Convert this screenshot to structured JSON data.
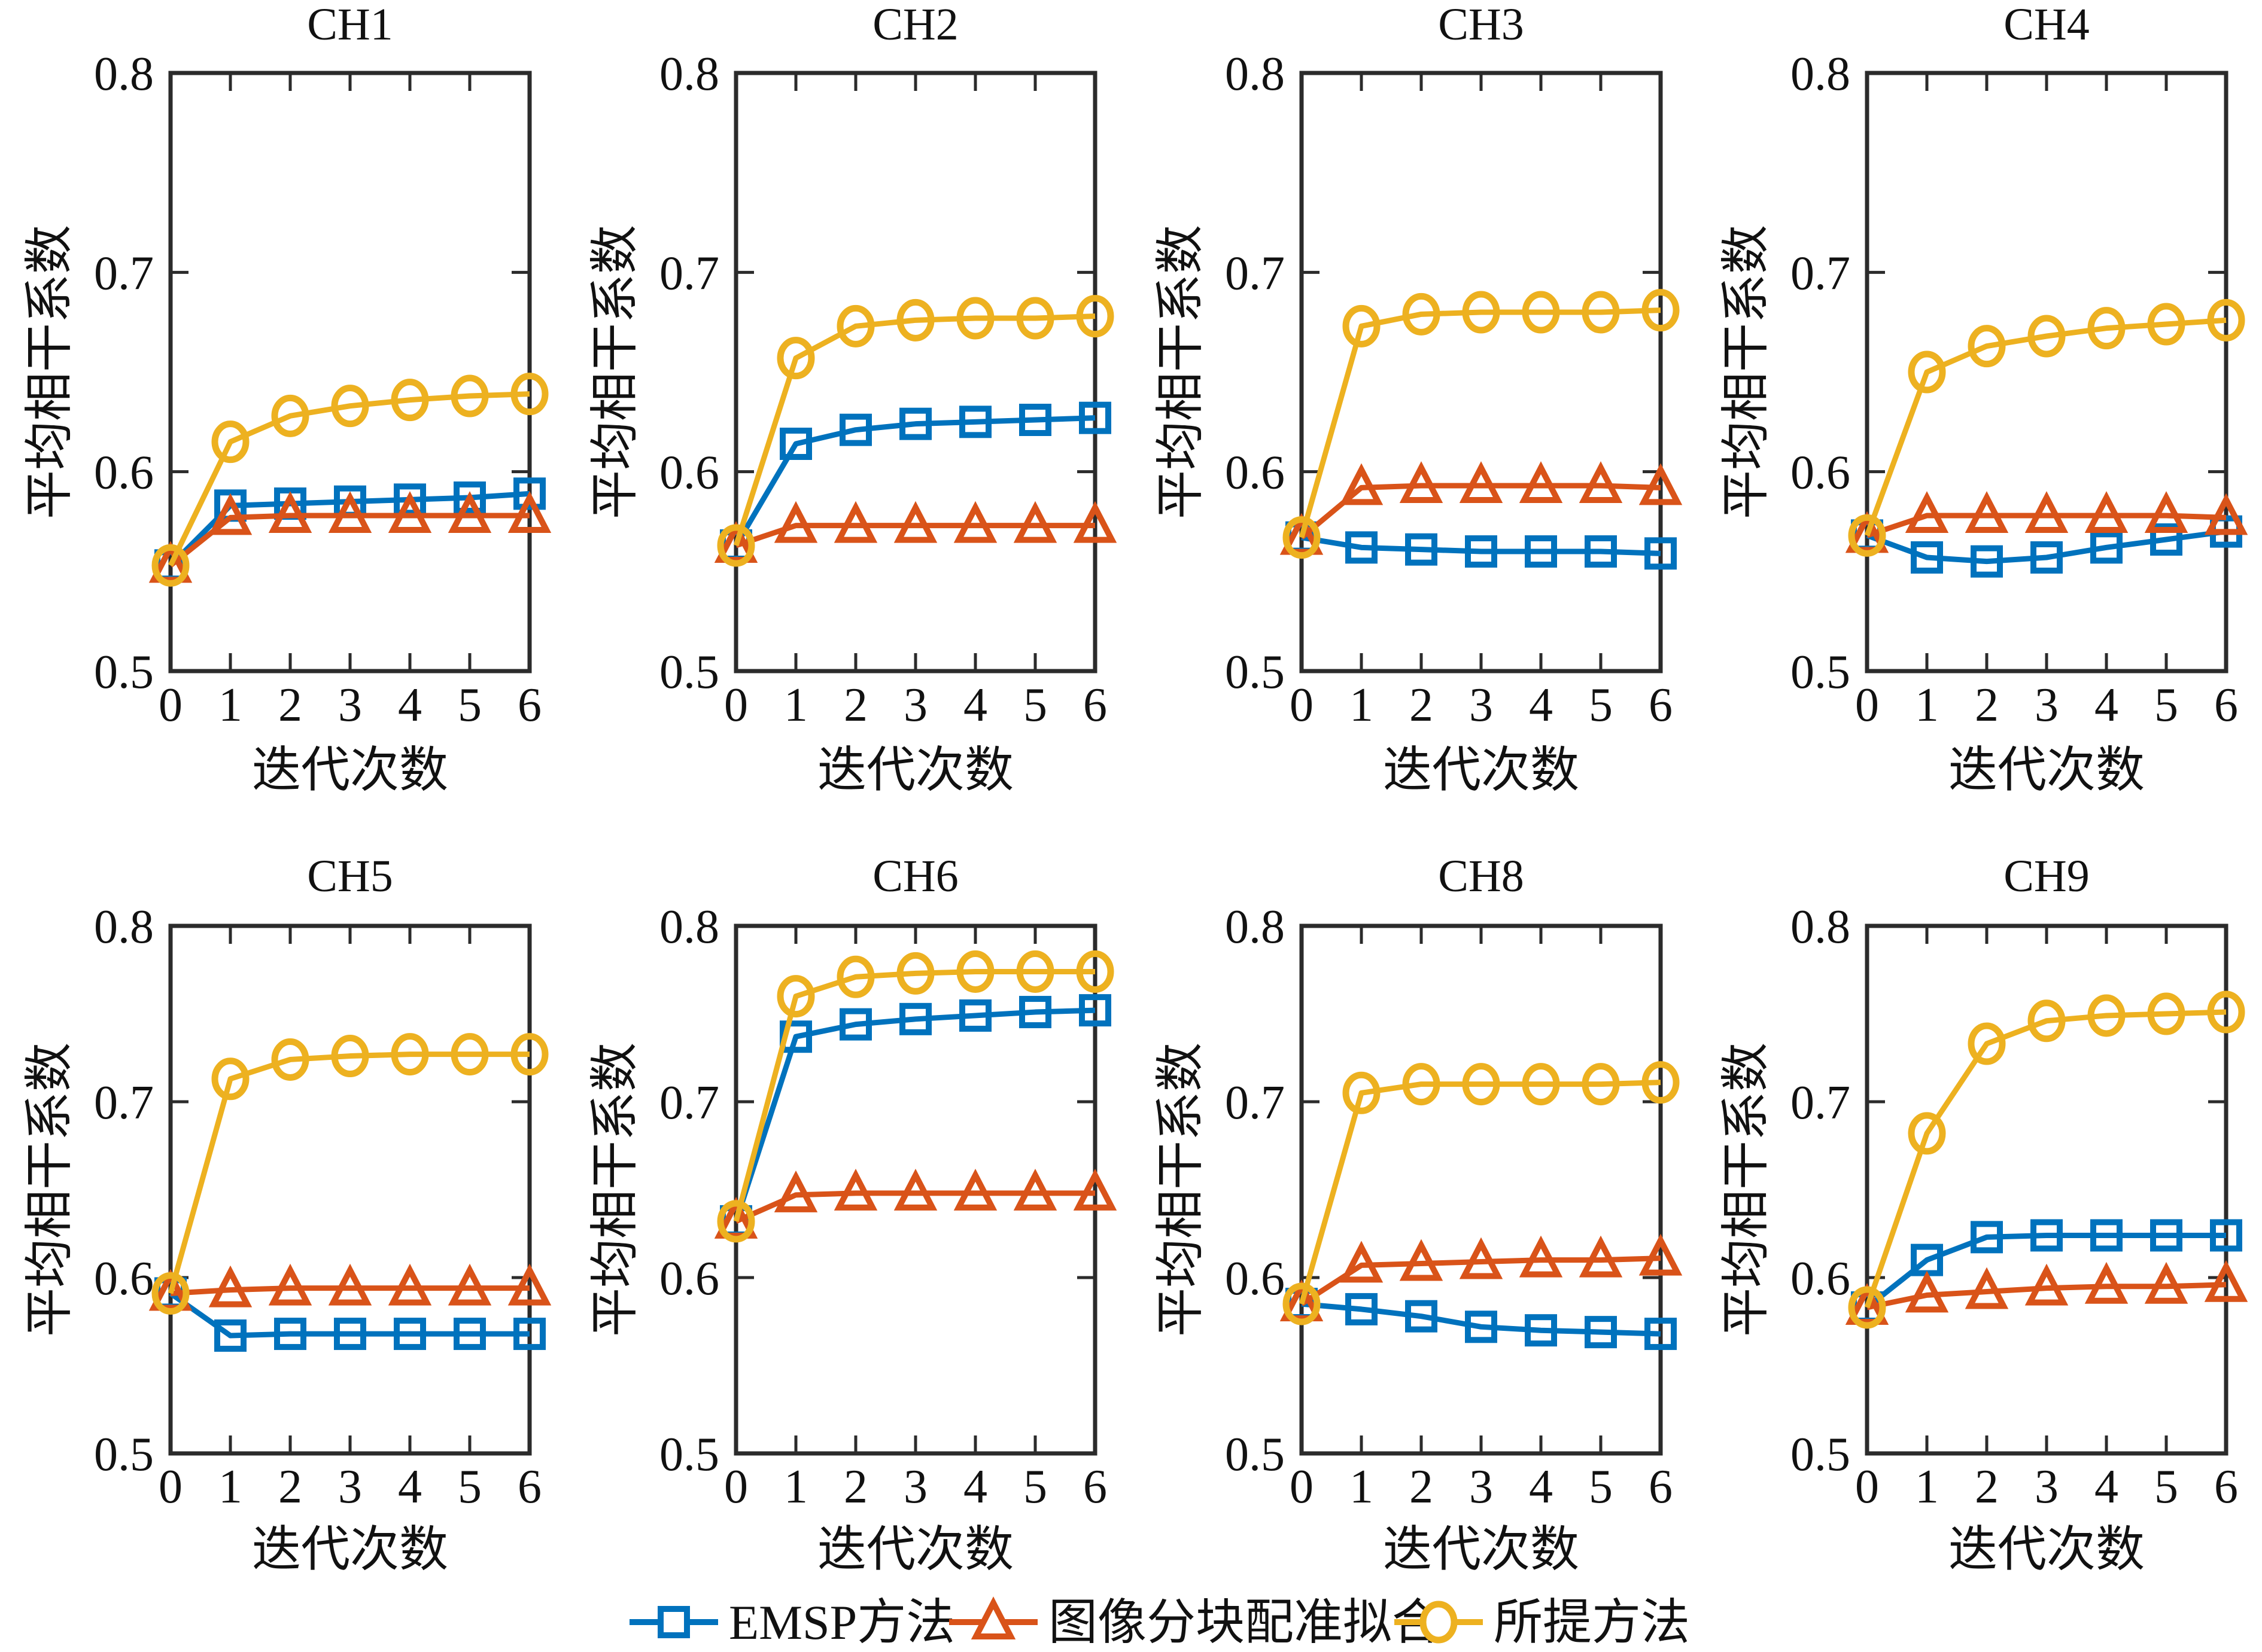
{
  "figure": {
    "ylabel": "平均相干系数",
    "xlabel": "迭代次数",
    "ylim": [
      0.5,
      0.8
    ],
    "yticks": [
      "0.5",
      "0.6",
      "0.7",
      "0.8"
    ],
    "xticks": [
      "0",
      "1",
      "2",
      "3",
      "4",
      "5",
      "6"
    ],
    "colors": {
      "emsp_blue": "#0072BD",
      "block_orange": "#D95319",
      "proposed_yellow": "#EDB120",
      "axis": "#2b2b2b",
      "text": "#111111"
    }
  },
  "legend": {
    "items": [
      {
        "label": "EMSP方法",
        "marker": "square-marker-icon",
        "color": "#0072BD"
      },
      {
        "label": "图像分块配准拟合",
        "marker": "triangle-marker-icon",
        "color": "#D95319"
      },
      {
        "label": "所提方法",
        "marker": "circle-marker-icon",
        "color": "#EDB120"
      }
    ]
  },
  "chart_data": [
    {
      "type": "line",
      "title": "CH1",
      "x": [
        0,
        1,
        2,
        3,
        4,
        5,
        6
      ],
      "xlabel": "迭代次数",
      "ylabel": "平均相干系数",
      "ylim": [
        0.5,
        0.8
      ],
      "yticks": [
        0.5,
        0.6,
        0.7,
        0.8
      ],
      "legend_position": "south-outside",
      "grid": false,
      "series": [
        {
          "name": "EMSP方法",
          "marker": "square",
          "color": "#0072BD",
          "values": [
            0.553,
            0.583,
            0.584,
            0.585,
            0.586,
            0.587,
            0.589
          ]
        },
        {
          "name": "图像分块配准拟合",
          "marker": "triangle",
          "color": "#D95319",
          "values": [
            0.553,
            0.577,
            0.578,
            0.578,
            0.578,
            0.578,
            0.578
          ]
        },
        {
          "name": "所提方法",
          "marker": "circle",
          "color": "#EDB120",
          "values": [
            0.553,
            0.615,
            0.628,
            0.633,
            0.636,
            0.638,
            0.639
          ]
        }
      ]
    },
    {
      "type": "line",
      "title": "CH2",
      "x": [
        0,
        1,
        2,
        3,
        4,
        5,
        6
      ],
      "xlabel": "迭代次数",
      "ylabel": "平均相干系数",
      "ylim": [
        0.5,
        0.8
      ],
      "yticks": [
        0.5,
        0.6,
        0.7,
        0.8
      ],
      "grid": false,
      "series": [
        {
          "name": "EMSP方法",
          "marker": "square",
          "color": "#0072BD",
          "values": [
            0.563,
            0.614,
            0.621,
            0.624,
            0.625,
            0.626,
            0.627
          ]
        },
        {
          "name": "图像分块配准拟合",
          "marker": "triangle",
          "color": "#D95319",
          "values": [
            0.563,
            0.573,
            0.573,
            0.573,
            0.573,
            0.573,
            0.573
          ]
        },
        {
          "name": "所提方法",
          "marker": "circle",
          "color": "#EDB120",
          "values": [
            0.563,
            0.657,
            0.673,
            0.676,
            0.677,
            0.677,
            0.678
          ]
        }
      ]
    },
    {
      "type": "line",
      "title": "CH3",
      "x": [
        0,
        1,
        2,
        3,
        4,
        5,
        6
      ],
      "xlabel": "迭代次数",
      "ylabel": "平均相干系数",
      "ylim": [
        0.5,
        0.8
      ],
      "yticks": [
        0.5,
        0.6,
        0.7,
        0.8
      ],
      "grid": false,
      "series": [
        {
          "name": "EMSP方法",
          "marker": "square",
          "color": "#0072BD",
          "values": [
            0.567,
            0.562,
            0.561,
            0.56,
            0.56,
            0.56,
            0.559
          ]
        },
        {
          "name": "图像分块配准拟合",
          "marker": "triangle",
          "color": "#D95319",
          "values": [
            0.567,
            0.592,
            0.593,
            0.593,
            0.593,
            0.593,
            0.592
          ]
        },
        {
          "name": "所提方法",
          "marker": "circle",
          "color": "#EDB120",
          "values": [
            0.567,
            0.673,
            0.679,
            0.68,
            0.68,
            0.68,
            0.681
          ]
        }
      ]
    },
    {
      "type": "line",
      "title": "CH4",
      "x": [
        0,
        1,
        2,
        3,
        4,
        5,
        6
      ],
      "xlabel": "迭代次数",
      "ylabel": "平均相干系数",
      "ylim": [
        0.5,
        0.8
      ],
      "yticks": [
        0.5,
        0.6,
        0.7,
        0.8
      ],
      "grid": false,
      "series": [
        {
          "name": "EMSP方法",
          "marker": "square",
          "color": "#0072BD",
          "values": [
            0.568,
            0.557,
            0.555,
            0.557,
            0.562,
            0.566,
            0.57
          ]
        },
        {
          "name": "图像分块配准拟合",
          "marker": "triangle",
          "color": "#D95319",
          "values": [
            0.568,
            0.578,
            0.578,
            0.578,
            0.578,
            0.578,
            0.577
          ]
        },
        {
          "name": "所提方法",
          "marker": "circle",
          "color": "#EDB120",
          "values": [
            0.568,
            0.65,
            0.663,
            0.668,
            0.672,
            0.674,
            0.676
          ]
        }
      ]
    },
    {
      "type": "line",
      "title": "CH5",
      "x": [
        0,
        1,
        2,
        3,
        4,
        5,
        6
      ],
      "xlabel": "迭代次数",
      "ylabel": "平均相干系数",
      "ylim": [
        0.5,
        0.8
      ],
      "yticks": [
        0.5,
        0.6,
        0.7,
        0.8
      ],
      "grid": false,
      "series": [
        {
          "name": "EMSP方法",
          "marker": "square",
          "color": "#0072BD",
          "values": [
            0.591,
            0.567,
            0.568,
            0.568,
            0.568,
            0.568,
            0.568
          ]
        },
        {
          "name": "图像分块配准拟合",
          "marker": "triangle",
          "color": "#D95319",
          "values": [
            0.591,
            0.593,
            0.594,
            0.594,
            0.594,
            0.594,
            0.594
          ]
        },
        {
          "name": "所提方法",
          "marker": "circle",
          "color": "#EDB120",
          "values": [
            0.591,
            0.713,
            0.724,
            0.726,
            0.727,
            0.727,
            0.727
          ]
        }
      ]
    },
    {
      "type": "line",
      "title": "CH6",
      "x": [
        0,
        1,
        2,
        3,
        4,
        5,
        6
      ],
      "xlabel": "迭代次数",
      "ylabel": "平均相干系数",
      "ylim": [
        0.5,
        0.8
      ],
      "yticks": [
        0.5,
        0.6,
        0.7,
        0.8
      ],
      "grid": false,
      "series": [
        {
          "name": "EMSP方法",
          "marker": "square",
          "color": "#0072BD",
          "values": [
            0.632,
            0.737,
            0.744,
            0.747,
            0.749,
            0.751,
            0.752
          ]
        },
        {
          "name": "图像分块配准拟合",
          "marker": "triangle",
          "color": "#D95319",
          "values": [
            0.632,
            0.647,
            0.648,
            0.648,
            0.648,
            0.648,
            0.648
          ]
        },
        {
          "name": "所提方法",
          "marker": "circle",
          "color": "#EDB120",
          "values": [
            0.632,
            0.76,
            0.771,
            0.773,
            0.774,
            0.774,
            0.774
          ]
        }
      ]
    },
    {
      "type": "line",
      "title": "CH8",
      "x": [
        0,
        1,
        2,
        3,
        4,
        5,
        6
      ],
      "xlabel": "迭代次数",
      "ylabel": "平均相干系数",
      "ylim": [
        0.5,
        0.8
      ],
      "yticks": [
        0.5,
        0.6,
        0.7,
        0.8
      ],
      "grid": false,
      "series": [
        {
          "name": "EMSP方法",
          "marker": "square",
          "color": "#0072BD",
          "values": [
            0.585,
            0.582,
            0.578,
            0.572,
            0.57,
            0.569,
            0.568
          ]
        },
        {
          "name": "图像分块配准拟合",
          "marker": "triangle",
          "color": "#D95319",
          "values": [
            0.585,
            0.607,
            0.608,
            0.609,
            0.61,
            0.61,
            0.611
          ]
        },
        {
          "name": "所提方法",
          "marker": "circle",
          "color": "#EDB120",
          "values": [
            0.585,
            0.705,
            0.71,
            0.71,
            0.71,
            0.71,
            0.711
          ]
        }
      ]
    },
    {
      "type": "line",
      "title": "CH9",
      "x": [
        0,
        1,
        2,
        3,
        4,
        5,
        6
      ],
      "xlabel": "迭代次数",
      "ylabel": "平均相干系数",
      "ylim": [
        0.5,
        0.8
      ],
      "yticks": [
        0.5,
        0.6,
        0.7,
        0.8
      ],
      "grid": false,
      "series": [
        {
          "name": "EMSP方法",
          "marker": "square",
          "color": "#0072BD",
          "values": [
            0.583,
            0.61,
            0.623,
            0.624,
            0.624,
            0.624,
            0.624
          ]
        },
        {
          "name": "图像分块配准拟合",
          "marker": "triangle",
          "color": "#D95319",
          "values": [
            0.583,
            0.59,
            0.592,
            0.594,
            0.595,
            0.595,
            0.596
          ]
        },
        {
          "name": "所提方法",
          "marker": "circle",
          "color": "#EDB120",
          "values": [
            0.583,
            0.682,
            0.733,
            0.746,
            0.749,
            0.75,
            0.751
          ]
        }
      ]
    }
  ]
}
